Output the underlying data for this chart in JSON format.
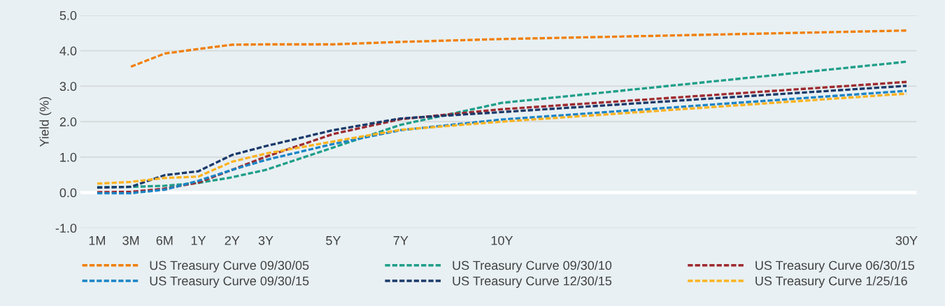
{
  "chart_data": {
    "type": "line",
    "ylabel": "Yield (%)",
    "categories": [
      "1M",
      "3M",
      "6M",
      "1Y",
      "2Y",
      "3Y",
      null,
      "5Y",
      null,
      "7Y",
      null,
      null,
      "10Y",
      null,
      null,
      null,
      null,
      null,
      null,
      null,
      null,
      null,
      null,
      null,
      "30Y"
    ],
    "ylim": [
      -1,
      5
    ],
    "yticks": [
      {
        "value": -1,
        "label": "-1.0"
      },
      {
        "value": 0,
        "label": "0.0"
      },
      {
        "value": 1,
        "label": "1.0"
      },
      {
        "value": 2,
        "label": "2.0"
      },
      {
        "value": 3,
        "label": "3.0"
      },
      {
        "value": 4,
        "label": "4.0"
      },
      {
        "value": 5,
        "label": "5.0"
      }
    ],
    "grid": "y",
    "legend": "bottom",
    "line_style": "dashed",
    "ref_lines": [
      {
        "axis": "y",
        "value": 0,
        "color": "#ffffff",
        "line_style": "solid"
      }
    ],
    "series": [
      {
        "name": "US Treasury Curve 09/30/05",
        "color": "#f07f09",
        "values": [
          null,
          3.55,
          3.92,
          4.05,
          4.17,
          4.18,
          null,
          4.18,
          null,
          4.25,
          null,
          null,
          4.33,
          null,
          null,
          null,
          null,
          null,
          null,
          null,
          null,
          null,
          null,
          null,
          4.57
        ]
      },
      {
        "name": "US Treasury Curve 09/30/10",
        "color": "#1f9e89",
        "values": [
          0.15,
          0.16,
          0.19,
          0.27,
          0.43,
          0.64,
          null,
          1.27,
          null,
          1.91,
          null,
          null,
          2.53,
          null,
          null,
          null,
          null,
          null,
          null,
          null,
          null,
          null,
          null,
          null,
          3.69
        ]
      },
      {
        "name": "US Treasury Curve 06/30/15",
        "color": "#9e2a2f",
        "values": [
          0.01,
          0.02,
          0.11,
          0.28,
          0.64,
          1.01,
          null,
          1.65,
          null,
          2.07,
          null,
          null,
          2.35,
          null,
          null,
          null,
          null,
          null,
          null,
          null,
          null,
          null,
          null,
          null,
          3.12
        ]
      },
      {
        "name": "US Treasury Curve 09/30/15",
        "color": "#1b84c6",
        "values": [
          -0.02,
          -0.02,
          0.08,
          0.33,
          0.64,
          0.92,
          null,
          1.37,
          null,
          1.76,
          null,
          null,
          2.06,
          null,
          null,
          null,
          null,
          null,
          null,
          null,
          null,
          null,
          null,
          null,
          2.87
        ]
      },
      {
        "name": "US Treasury Curve 12/30/15",
        "color": "#1b3a6b",
        "values": [
          0.14,
          0.16,
          0.49,
          0.6,
          1.06,
          1.31,
          null,
          1.76,
          null,
          2.09,
          null,
          null,
          2.27,
          null,
          null,
          null,
          null,
          null,
          null,
          null,
          null,
          null,
          null,
          null,
          3.01
        ]
      },
      {
        "name": "US Treasury Curve 1/25/16",
        "color": "#fbb320",
        "values": [
          0.25,
          0.3,
          0.41,
          0.45,
          0.87,
          1.1,
          null,
          1.44,
          null,
          1.77,
          null,
          null,
          2.0,
          null,
          null,
          null,
          null,
          null,
          null,
          null,
          null,
          null,
          null,
          null,
          2.79
        ]
      }
    ]
  }
}
